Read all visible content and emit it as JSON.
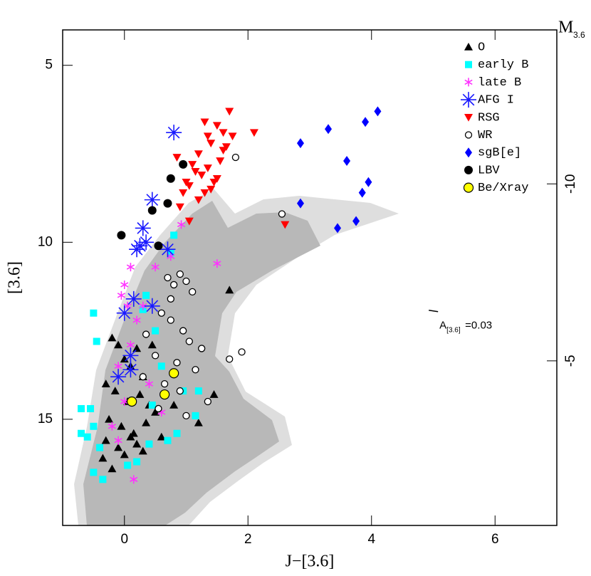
{
  "chart_data": {
    "type": "scatter",
    "x_label": "J−[3.6]",
    "y_label": "[3.6]",
    "y2_label": "M",
    "y2_label_sub": "3.6",
    "annotation": {
      "text": "A",
      "sub": "[3.6]",
      "rest": "=0.03",
      "x": 5.1,
      "y": 12.0
    },
    "xlim": [
      -1,
      7
    ],
    "ylim": [
      4,
      18
    ],
    "y_inverted": true,
    "xticks": [
      0,
      2,
      4,
      6
    ],
    "yticks": [
      5,
      10,
      15
    ],
    "y2lim": [
      -14.35,
      -0.35
    ],
    "y2ticks": [
      -10,
      -5
    ],
    "series": [
      {
        "name": "O",
        "color": "#000000",
        "marker": "triangle",
        "x": [
          -0.2,
          -0.1,
          0,
          0.1,
          0.2,
          0.3,
          -0.3,
          -0.15,
          0.05,
          0.25,
          0.4,
          -0.25,
          -0.05,
          0.15,
          0.35,
          0.5,
          -0.3,
          -0.1,
          0.1,
          0.3,
          -0.35,
          -0.2,
          0,
          0.2,
          1.7,
          1.45,
          1.2,
          0.6,
          0.8,
          0.45
        ],
        "values": [
          12.7,
          12.9,
          13.3,
          13.5,
          13.0,
          13.8,
          14.0,
          14.2,
          14.5,
          14.3,
          14.6,
          15.0,
          15.2,
          15.4,
          15.1,
          14.8,
          15.6,
          15.8,
          15.5,
          15.9,
          16.1,
          16.4,
          16.0,
          15.7,
          11.35,
          14.3,
          15.1,
          15.5,
          14.6,
          12.9
        ]
      },
      {
        "name": "early B",
        "color": "#00ffff",
        "marker": "square",
        "x": [
          -0.5,
          -0.45,
          -0.7,
          -0.55,
          -0.7,
          -0.6,
          -0.5,
          -0.4,
          -0.5,
          -0.35,
          0.05,
          0.2,
          0.4,
          0.7,
          0.85,
          1.15,
          0.5,
          0.35,
          0.6,
          0.8,
          0.75,
          0.3,
          0.95,
          1.2,
          0.45
        ],
        "values": [
          12.0,
          12.8,
          14.7,
          14.7,
          15.4,
          15.5,
          15.2,
          15.8,
          16.5,
          16.7,
          16.3,
          16.2,
          15.7,
          15.6,
          15.4,
          14.9,
          12.5,
          11.5,
          13.5,
          9.8,
          10.3,
          11.9,
          14.2,
          14.2,
          14.6
        ]
      },
      {
        "name": "late B",
        "color": "#ff33ff",
        "marker": "asterisk",
        "x": [
          0.92,
          0.75,
          0.5,
          1.5,
          0.1,
          0.0,
          0.05,
          -0.05,
          0.3,
          0.2,
          0.1,
          -0.1,
          0.0,
          -0.2,
          0.15,
          0.4,
          0.6,
          -0.1
        ],
        "values": [
          9.5,
          10.4,
          10.7,
          10.6,
          10.7,
          11.2,
          11.8,
          11.5,
          11.8,
          12.2,
          12.9,
          13.5,
          14.5,
          15.2,
          16.7,
          14.0,
          14.8,
          15.6
        ]
      },
      {
        "name": "AFG I",
        "color": "#1a1aff",
        "marker": "star",
        "x": [
          0.8,
          0.45,
          0.3,
          0.25,
          0.2,
          0.35,
          0.7,
          0.45,
          0.15,
          0.0,
          0.1,
          -0.1,
          0.1
        ],
        "values": [
          6.9,
          8.8,
          9.6,
          10.1,
          10.2,
          10.0,
          10.2,
          11.8,
          11.6,
          12.0,
          13.2,
          13.8,
          13.6
        ]
      },
      {
        "name": "RSG",
        "color": "#ff0000",
        "marker": "downtriangle",
        "x": [
          1.7,
          1.5,
          2.1,
          1.3,
          1.4,
          1.6,
          1.2,
          1.1,
          1.35,
          1.55,
          1.25,
          1.45,
          1.65,
          1.05,
          1.15,
          1.3,
          1.5,
          1.2,
          1.4,
          1.0,
          0.85,
          0.95,
          0.9,
          1.05,
          2.6,
          1.75,
          1.6,
          1.35
        ],
        "values": [
          6.3,
          6.7,
          6.9,
          6.6,
          7.2,
          7.4,
          7.5,
          7.8,
          7.9,
          7.7,
          8.1,
          8.3,
          7.3,
          8.4,
          8.0,
          8.6,
          8.2,
          8.8,
          8.5,
          8.3,
          7.6,
          8.6,
          9.0,
          9.4,
          9.5,
          7.0,
          6.9,
          7.0
        ]
      },
      {
        "name": "WR",
        "color": "#000000",
        "marker": "open",
        "x": [
          1.8,
          2.55,
          1.9,
          1.7,
          0.3,
          0.7,
          0.8,
          0.9,
          1.0,
          1.1,
          0.6,
          0.75,
          0.95,
          1.05,
          1.25,
          0.5,
          0.85,
          1.15,
          0.65,
          0.9,
          1.35,
          0.35,
          0.55,
          1.0,
          0.75
        ],
        "values": [
          7.6,
          9.2,
          13.1,
          13.3,
          13.8,
          11.0,
          11.2,
          10.9,
          11.1,
          11.4,
          12.0,
          12.2,
          12.5,
          12.8,
          13.0,
          13.2,
          13.4,
          13.6,
          14.0,
          14.2,
          14.5,
          12.6,
          14.7,
          14.9,
          11.6
        ]
      },
      {
        "name": "sgB[e]",
        "color": "#0000ff",
        "marker": "diamond",
        "x": [
          4.1,
          3.9,
          3.3,
          2.85,
          3.6,
          3.95,
          3.85,
          2.85,
          3.75,
          3.45
        ],
        "values": [
          6.3,
          6.6,
          6.8,
          7.2,
          7.7,
          8.3,
          8.6,
          8.9,
          9.4,
          9.6
        ]
      },
      {
        "name": "LBV",
        "color": "#000000",
        "marker": "filled",
        "x": [
          0.95,
          0.75,
          0.7,
          0.45,
          -0.05,
          0.55
        ],
        "values": [
          7.8,
          8.2,
          8.9,
          9.1,
          9.8,
          10.1
        ]
      },
      {
        "name": "Be/Xray",
        "color": "#ffff00",
        "marker": "ring",
        "x": [
          0.8,
          0.65,
          0.12
        ],
        "values": [
          13.7,
          14.3,
          14.5
        ]
      }
    ]
  }
}
